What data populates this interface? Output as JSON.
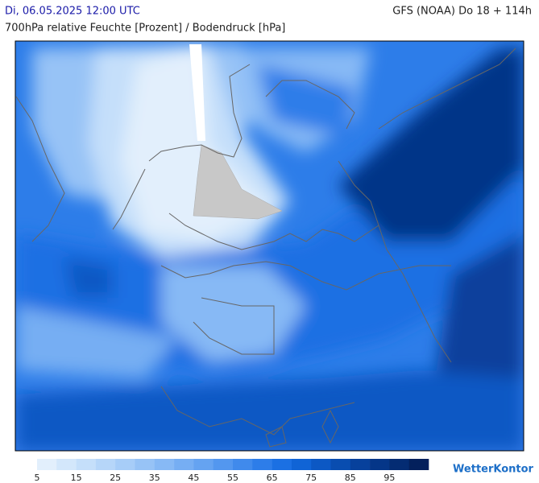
{
  "header": {
    "datetime": "Di, 06.05.2025 12:00 UTC",
    "model": "GFS (NOAA) Do 18 + 114h",
    "title": "700hPa relative Feuchte [Prozent] / Bodendruck [hPa]"
  },
  "legend": {
    "ticks": [
      5,
      15,
      25,
      35,
      45,
      55,
      65,
      75,
      85,
      95
    ],
    "colors": [
      "#e2effc",
      "#d3e7fb",
      "#c5dffa",
      "#b6d6f9",
      "#a7cdf8",
      "#97c3f6",
      "#87b9f5",
      "#76aef3",
      "#65a3f1",
      "#5397ef",
      "#408aec",
      "#2d7de9",
      "#1b70e3",
      "#1064d6",
      "#0c58c4",
      "#094db0",
      "#07419c",
      "#053688",
      "#042c73",
      "#03205c"
    ]
  },
  "logo": "WetterKontor"
}
